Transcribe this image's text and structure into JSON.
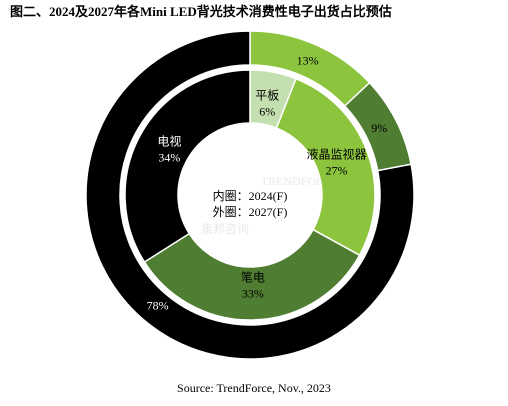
{
  "chart_data": {
    "type": "donut",
    "title": "图二、2024及2027年各Mini LED背光技术消费性电子出货占比预估",
    "source": "Source: TrendForce, Nov., 2023",
    "watermark": [
      "TRENDFORCE",
      "集邦咨询"
    ],
    "rings": [
      {
        "label": "内圈：2024(F)",
        "categories": [
          "平板",
          "液晶监视器",
          "笔电",
          "电视"
        ],
        "values": [
          6,
          27,
          33,
          34
        ],
        "value_labels": [
          "6%",
          "27%",
          "33%",
          "34%"
        ],
        "colors": [
          "#c5e0b0",
          "#8cc43e",
          "#4f7d31",
          "#000000"
        ]
      },
      {
        "label": "外圈：2027(F)",
        "categories": [
          null,
          null,
          null
        ],
        "values": [
          13,
          9,
          78
        ],
        "value_labels": [
          "13%",
          "9%",
          "78%"
        ],
        "colors": [
          "#8cc43e",
          "#4f7d31",
          "#000000"
        ]
      }
    ]
  }
}
